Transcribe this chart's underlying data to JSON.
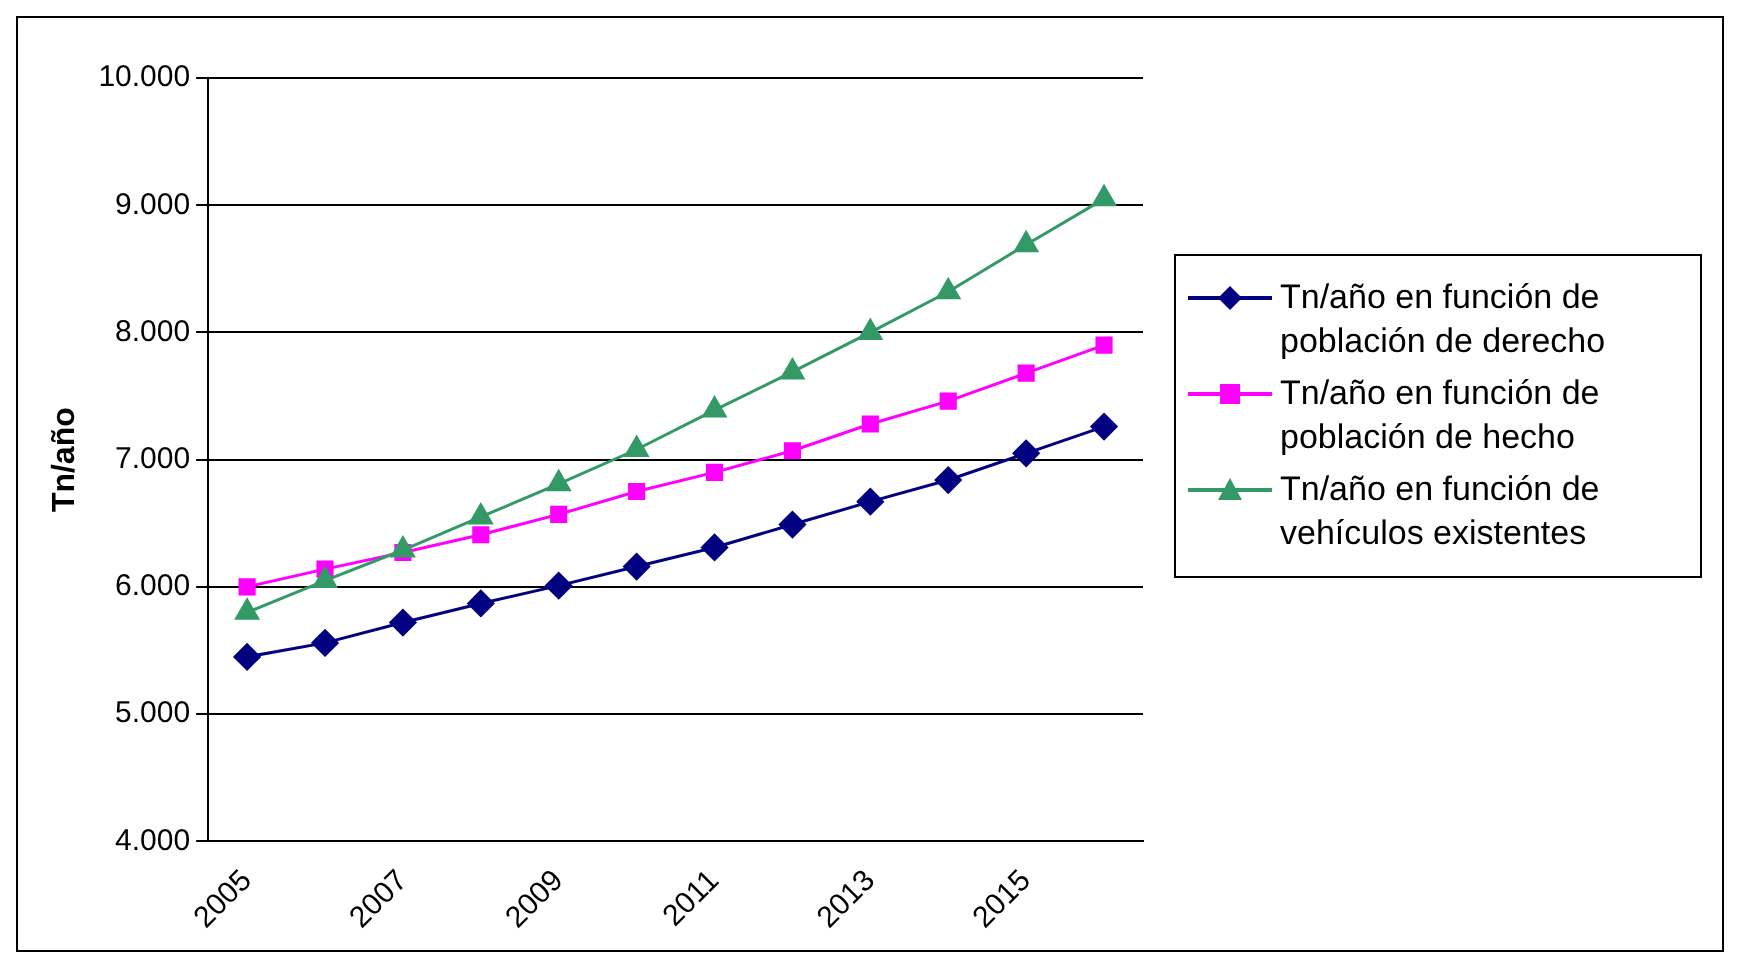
{
  "chart_data": {
    "type": "line",
    "ylabel": "Tn/año",
    "categories": [
      "2005",
      null,
      "2007",
      null,
      "2009",
      null,
      "2011",
      null,
      "2013",
      null,
      "2015",
      null
    ],
    "series": [
      {
        "name": "Tn/año en función de población de derecho",
        "color": "#000080",
        "marker": "diamond",
        "values": [
          5450,
          5560,
          5720,
          5870,
          6010,
          6160,
          6310,
          6490,
          6670,
          6840,
          7050,
          7260
        ]
      },
      {
        "name": "Tn/año en función de población de hecho",
        "color": "#ff00ff",
        "marker": "square",
        "values": [
          6000,
          6140,
          6270,
          6410,
          6570,
          6750,
          6900,
          7070,
          7280,
          7460,
          7680,
          7900
        ]
      },
      {
        "name": "Tn/año en función de vehículos existentes",
        "color": "#339966",
        "marker": "triangle",
        "values": [
          5800,
          6050,
          6290,
          6550,
          6810,
          7080,
          7390,
          7690,
          8000,
          8320,
          8690,
          9050
        ]
      }
    ],
    "ylim": [
      4000,
      10000
    ],
    "yticks": [
      {
        "value": 4000,
        "label": "4.000"
      },
      {
        "value": 5000,
        "label": "5.000"
      },
      {
        "value": 6000,
        "label": "6.000"
      },
      {
        "value": 7000,
        "label": "7.000"
      },
      {
        "value": 8000,
        "label": "8.000"
      },
      {
        "value": 9000,
        "label": "9.000"
      },
      {
        "value": 10000,
        "label": "10.000"
      }
    ],
    "grid": "y",
    "legend": "right"
  }
}
